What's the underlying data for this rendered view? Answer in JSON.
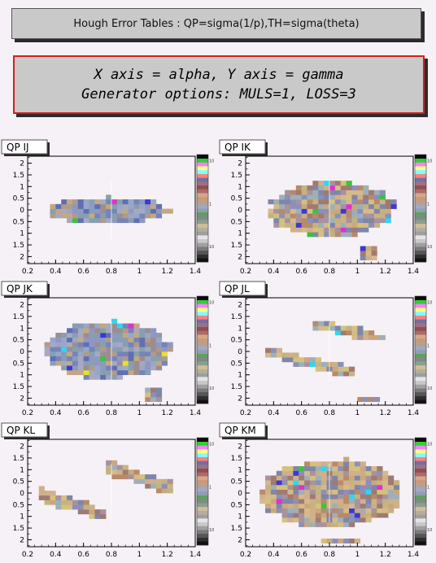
{
  "title": "Hough Error Tables : QP=sigma(1/p),TH=sigma(theta)",
  "subtitle_lines": [
    "X axis = alpha, Y axis = gamma",
    "Generator options: MULS=1, LOSS=3"
  ],
  "chart_data": [
    {
      "type": "heatmap",
      "title": "QP  IJ",
      "xlim": [
        0.2,
        1.4
      ],
      "xticks": [
        0.2,
        0.4,
        0.6,
        0.8,
        1,
        1.2,
        1.4
      ],
      "ylim": [
        -2.3,
        2.3
      ],
      "yticks": [
        {
          "v": 2,
          "t": "2"
        },
        {
          "v": 1.5,
          "t": "1.5"
        },
        {
          "v": 1,
          "t": "1"
        },
        {
          "v": 0.5,
          "t": "0.5"
        },
        {
          "v": 0,
          "t": "0"
        },
        {
          "v": -0.5,
          "t": "0.5"
        },
        {
          "v": -1,
          "t": "1"
        },
        {
          "v": -1.5,
          "t": "1.5"
        },
        {
          "v": -2,
          "t": "2"
        }
      ],
      "regions": [
        {
          "x": [
            0.32,
            1.22
          ],
          "y": [
            -0.55,
            0.55
          ],
          "mode": "ellipse",
          "palette": "blue",
          "seed": 11
        }
      ]
    },
    {
      "type": "heatmap",
      "title": "QP  IK",
      "xlim": [
        0.2,
        1.4
      ],
      "xticks": [
        0.2,
        0.4,
        0.6,
        0.8,
        1,
        1.2,
        1.4
      ],
      "ylim": [
        -2.3,
        2.3
      ],
      "yticks": [
        {
          "v": 2,
          "t": "2"
        },
        {
          "v": 1.5,
          "t": "1.5"
        },
        {
          "v": 1,
          "t": "1"
        },
        {
          "v": 0.5,
          "t": "0.5"
        },
        {
          "v": 0,
          "t": "0"
        },
        {
          "v": -0.5,
          "t": "0.5"
        },
        {
          "v": -1,
          "t": "1"
        },
        {
          "v": -1.5,
          "t": "1.5"
        },
        {
          "v": -2,
          "t": "2"
        }
      ],
      "regions": [
        {
          "x": [
            0.36,
            1.26
          ],
          "y": [
            -1.15,
            1.2
          ],
          "mode": "ellipse",
          "palette": "warm",
          "seed": 23
        },
        {
          "x": [
            1.02,
            1.12
          ],
          "y": [
            -2.15,
            -1.7
          ],
          "mode": "rect",
          "palette": "warm",
          "seed": 5
        }
      ]
    },
    {
      "type": "heatmap",
      "title": "QP  JK",
      "xlim": [
        0.2,
        1.4
      ],
      "xticks": [
        0.2,
        0.4,
        0.6,
        0.8,
        1,
        1.2,
        1.4
      ],
      "ylim": [
        -2.3,
        2.3
      ],
      "yticks": [
        {
          "v": 2,
          "t": "2"
        },
        {
          "v": 1.5,
          "t": "1.5"
        },
        {
          "v": 1,
          "t": "1"
        },
        {
          "v": 0.5,
          "t": "0.5"
        },
        {
          "v": 0,
          "t": "0"
        },
        {
          "v": -0.5,
          "t": "0.5"
        },
        {
          "v": -1,
          "t": "1"
        },
        {
          "v": -1.5,
          "t": "1.5"
        },
        {
          "v": -2,
          "t": "2"
        }
      ],
      "regions": [
        {
          "x": [
            0.32,
            1.24
          ],
          "y": [
            -1.2,
            1.25
          ],
          "mode": "ellipse",
          "palette": "blue",
          "seed": 37
        },
        {
          "x": [
            1.04,
            1.16
          ],
          "y": [
            -2.15,
            -1.7
          ],
          "mode": "rect",
          "palette": "warm",
          "seed": 9
        }
      ]
    },
    {
      "type": "heatmap",
      "title": "QP  JL",
      "xlim": [
        0.2,
        1.4
      ],
      "xticks": [
        0.2,
        0.4,
        0.6,
        0.8,
        1,
        1.2,
        1.4
      ],
      "ylim": [
        -2.3,
        2.3
      ],
      "yticks": [
        {
          "v": 2,
          "t": "2"
        },
        {
          "v": 1.5,
          "t": "1.5"
        },
        {
          "v": 1,
          "t": "1"
        },
        {
          "v": 0.5,
          "t": "0.5"
        },
        {
          "v": 0,
          "t": "0"
        },
        {
          "v": -0.5,
          "t": "0.5"
        },
        {
          "v": -1,
          "t": "1"
        },
        {
          "v": -1.5,
          "t": "1.5"
        },
        {
          "v": -2,
          "t": "2"
        }
      ],
      "regions": [
        {
          "x": [
            0.68,
            1.2
          ],
          "y": [
            0.5,
            1.25
          ],
          "mode": "band",
          "slope": -1.45,
          "halfw": 0.22,
          "palette": "warm",
          "seed": 41
        },
        {
          "x": [
            0.34,
            0.96
          ],
          "y": [
            -1.05,
            0.15
          ],
          "mode": "band",
          "slope": -1.5,
          "halfw": 0.22,
          "palette": "warm",
          "seed": 43
        },
        {
          "x": [
            1.0,
            1.16
          ],
          "y": [
            -2.15,
            -2.05
          ],
          "mode": "rect",
          "palette": "warm",
          "seed": 3
        }
      ]
    },
    {
      "type": "heatmap",
      "title": "QP  KL",
      "xlim": [
        0.2,
        1.4
      ],
      "xticks": [
        0.2,
        0.4,
        0.6,
        0.8,
        1,
        1.2,
        1.4
      ],
      "ylim": [
        -2.3,
        2.3
      ],
      "yticks": [
        {
          "v": 2,
          "t": "2"
        },
        {
          "v": 1.5,
          "t": "1.5"
        },
        {
          "v": 1,
          "t": "1"
        },
        {
          "v": 0.5,
          "t": "0.5"
        },
        {
          "v": 0,
          "t": "0"
        },
        {
          "v": -0.5,
          "t": "0.5"
        },
        {
          "v": -1,
          "t": "1"
        },
        {
          "v": -1.5,
          "t": "1.5"
        },
        {
          "v": -2,
          "t": "2"
        }
      ],
      "regions": [
        {
          "x": [
            0.28,
            0.74
          ],
          "y": [
            -1.3,
            0.3
          ],
          "mode": "band",
          "slope": -1.9,
          "halfw": 0.28,
          "palette": "warm",
          "seed": 51
        },
        {
          "x": [
            0.76,
            1.24
          ],
          "y": [
            0.0,
            1.35
          ],
          "mode": "band",
          "slope": -2.0,
          "halfw": 0.3,
          "palette": "warm",
          "seed": 57
        }
      ]
    },
    {
      "type": "heatmap",
      "title": "QP  KM",
      "xlim": [
        0.2,
        1.4
      ],
      "xticks": [
        0.2,
        0.4,
        0.6,
        0.8,
        1,
        1.2,
        1.4
      ],
      "ylim": [
        -2.3,
        2.3
      ],
      "yticks": [
        {
          "v": 2,
          "t": "2"
        },
        {
          "v": 1.5,
          "t": "1.5"
        },
        {
          "v": 1,
          "t": "1"
        },
        {
          "v": 0.5,
          "t": "0.5"
        },
        {
          "v": 0,
          "t": "0"
        },
        {
          "v": -0.5,
          "t": "0.5"
        },
        {
          "v": -1,
          "t": "1"
        },
        {
          "v": -1.5,
          "t": "1.5"
        },
        {
          "v": -2,
          "t": "2"
        }
      ],
      "regions": [
        {
          "x": [
            0.3,
            1.32
          ],
          "y": [
            -1.45,
            1.45
          ],
          "mode": "ellipse",
          "palette": "warm",
          "seed": 63
        },
        {
          "x": [
            0.74,
            1.0
          ],
          "y": [
            -2.15,
            -1.95
          ],
          "mode": "rect",
          "palette": "warm",
          "seed": 6
        }
      ]
    }
  ],
  "palettes": {
    "warm": [
      "#c9a87e",
      "#d7b98a",
      "#b78a6a",
      "#a8929c",
      "#8c8fb8",
      "#c4b37f",
      "#9db0b8",
      "#d4c27c",
      "#a07a72",
      "#7f86a8",
      "#cfb08a"
    ],
    "blue": [
      "#8f98c4",
      "#7584b9",
      "#9aa6c8",
      "#b09a8c",
      "#c3a880",
      "#8a9db0",
      "#5e6fb3",
      "#a6aac0",
      "#9c8d90",
      "#83a2ad"
    ]
  },
  "accent_colors": [
    "#3a38d6",
    "#e030d0",
    "#30d6f0",
    "#40c040",
    "#e8e030"
  ],
  "colorbar": [
    "#111111",
    "#2e2e2e",
    "#555555",
    "#7a7a7a",
    "#a0a0a0",
    "#c8c8c8",
    "#e4e4e4",
    "#9aa0a0",
    "#b8ad98",
    "#cdbf9c",
    "#8c9f8c",
    "#7f8a86",
    "#5f9f5f",
    "#8fa0b0",
    "#a0a8c8",
    "#b8a090",
    "#c89a78",
    "#d4a888",
    "#b06868",
    "#8c5050",
    "#a07080",
    "#7070a0",
    "#ff8080",
    "#80ffff",
    "#ffff80",
    "#ff80ff",
    "#30d030",
    "#0a0a0a"
  ],
  "colorbar_labels": [
    "10",
    "1",
    "10"
  ]
}
